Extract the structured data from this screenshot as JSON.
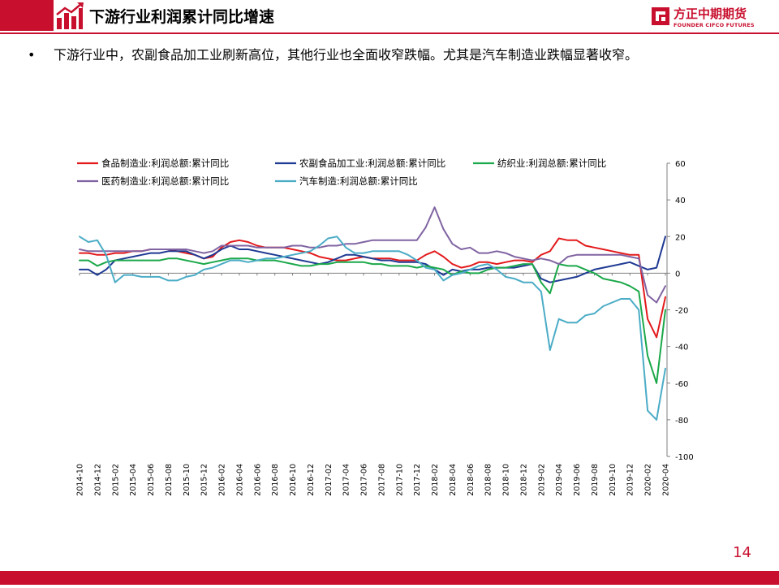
{
  "header": {
    "title": "下游行业利润累计同比增速",
    "brand_name": "方正中期期货",
    "brand_sub": "FOUNDER CIFCO FUTURES"
  },
  "bullet": {
    "text": "下游行业中，农副食品加工业刷新高位，其他行业也全面收窄跌幅。尤其是汽车制造业跌幅显著收窄。"
  },
  "page_number": "14",
  "colors": {
    "brand_red": "#c8102e",
    "axis": "#7f7f7f"
  },
  "icons": {
    "title_icon": "bar-chart-growth-icon",
    "brand_icon": "founder-logo-icon"
  },
  "chart_data": {
    "type": "line",
    "title": "",
    "xlabel": "",
    "ylabel": "",
    "ylim": [
      -100,
      60
    ],
    "yticks": [
      60,
      40,
      20,
      0,
      -20,
      -40,
      -60,
      -80,
      -100
    ],
    "y_axis_side": "right",
    "grid": false,
    "legend": "top-left, 3 columns",
    "x": [
      "2014-10",
      "2014-11",
      "2014-12",
      "2015-01",
      "2015-02",
      "2015-03",
      "2015-04",
      "2015-05",
      "2015-06",
      "2015-07",
      "2015-08",
      "2015-09",
      "2015-10",
      "2015-11",
      "2015-12",
      "2016-01",
      "2016-02",
      "2016-03",
      "2016-04",
      "2016-05",
      "2016-06",
      "2016-07",
      "2016-08",
      "2016-09",
      "2016-10",
      "2016-11",
      "2016-12",
      "2017-01",
      "2017-02",
      "2017-03",
      "2017-04",
      "2017-05",
      "2017-06",
      "2017-07",
      "2017-08",
      "2017-09",
      "2017-10",
      "2017-11",
      "2017-12",
      "2018-01",
      "2018-02",
      "2018-03",
      "2018-04",
      "2018-05",
      "2018-06",
      "2018-07",
      "2018-08",
      "2018-09",
      "2018-10",
      "2018-11",
      "2018-12",
      "2019-01",
      "2019-02",
      "2019-03",
      "2019-04",
      "2019-05",
      "2019-06",
      "2019-07",
      "2019-08",
      "2019-09",
      "2019-10",
      "2019-11",
      "2019-12",
      "2020-01",
      "2020-02",
      "2020-03",
      "2020-04"
    ],
    "x_tick_labels": [
      "2014-10",
      "2014-12",
      "2015-02",
      "2015-04",
      "2015-06",
      "2015-08",
      "2015-10",
      "2015-12",
      "2016-02",
      "2016-04",
      "2016-06",
      "2016-08",
      "2016-10",
      "2016-12",
      "2017-02",
      "2017-04",
      "2017-06",
      "2017-08",
      "2017-10",
      "2017-12",
      "2018-02",
      "2018-04",
      "2018-06",
      "2018-08",
      "2018-10",
      "2018-12",
      "2019-02",
      "2019-04",
      "2019-06",
      "2019-08",
      "2019-10",
      "2019-12",
      "2020-02",
      "2020-04"
    ],
    "series": [
      {
        "name": "食品制造业:利润总额:累计同比",
        "color": "#e31a1c",
        "values": [
          11,
          11,
          10,
          10,
          11,
          11,
          12,
          12,
          13,
          13,
          13,
          12,
          11,
          10,
          8,
          9,
          14,
          17,
          18,
          17,
          15,
          14,
          14,
          14,
          13,
          12,
          11,
          9,
          8,
          7,
          7,
          8,
          9,
          8,
          8,
          8,
          7,
          7,
          7,
          10,
          12,
          9,
          5,
          3,
          4,
          6,
          6,
          5,
          6,
          7,
          7,
          6,
          10,
          12,
          19,
          18,
          18,
          15,
          14,
          13,
          12,
          11,
          10,
          10,
          -25,
          -35,
          -13
        ]
      },
      {
        "name": "农副食品加工业:利润总额:累计同比",
        "color": "#1f3a93",
        "values": [
          2,
          2,
          -1,
          2,
          7,
          8,
          9,
          10,
          11,
          11,
          12,
          12,
          12,
          10,
          8,
          10,
          13,
          15,
          13,
          13,
          12,
          11,
          10,
          9,
          8,
          7,
          6,
          5,
          6,
          8,
          10,
          10,
          9,
          8,
          7,
          7,
          6,
          6,
          6,
          5,
          2,
          -1,
          2,
          1,
          2,
          2,
          3,
          3,
          3,
          3,
          4,
          5,
          -3,
          -5,
          -4,
          -3,
          -2,
          0,
          2,
          3,
          4,
          5,
          6,
          4,
          2,
          3,
          20
        ]
      },
      {
        "name": "纺织业:利润总额:累计同比",
        "color": "#1ba84a",
        "values": [
          7,
          7,
          4,
          6,
          7,
          7,
          7,
          7,
          7,
          7,
          8,
          8,
          7,
          6,
          5,
          6,
          7,
          8,
          8,
          8,
          7,
          7,
          7,
          6,
          5,
          4,
          4,
          5,
          5,
          6,
          6,
          6,
          6,
          5,
          5,
          4,
          4,
          4,
          3,
          4,
          3,
          2,
          -1,
          1,
          0,
          0,
          2,
          3,
          3,
          4,
          5,
          5,
          -5,
          -11,
          5,
          4,
          4,
          2,
          0,
          -3,
          -4,
          -5,
          -7,
          -10,
          -45,
          -60,
          -20
        ]
      },
      {
        "name": "医药制造业:利润总额:累计同比",
        "color": "#8064a2",
        "values": [
          13,
          12,
          12,
          12,
          12,
          12,
          12,
          12,
          13,
          13,
          13,
          13,
          13,
          12,
          11,
          12,
          15,
          15,
          15,
          15,
          14,
          14,
          14,
          14,
          15,
          15,
          14,
          14,
          15,
          15,
          16,
          16,
          17,
          18,
          18,
          18,
          18,
          18,
          18,
          25,
          36,
          24,
          16,
          13,
          14,
          11,
          11,
          12,
          11,
          9,
          8,
          7,
          8,
          7,
          5,
          9,
          10,
          10,
          10,
          10,
          10,
          10,
          9,
          8,
          -12,
          -16,
          -7
        ]
      },
      {
        "name": "汽车制造:利润总额:累计同比",
        "color": "#4bacc6",
        "values": [
          20,
          17,
          18,
          10,
          -5,
          -1,
          -1,
          -2,
          -2,
          -2,
          -4,
          -4,
          -2,
          -1,
          2,
          3,
          5,
          7,
          7,
          6,
          7,
          8,
          8,
          9,
          10,
          11,
          12,
          15,
          19,
          20,
          14,
          11,
          11,
          12,
          12,
          12,
          12,
          10,
          7,
          3,
          2,
          -4,
          -1,
          0,
          2,
          4,
          5,
          2,
          -2,
          -3,
          -5,
          -5,
          -10,
          -42,
          -25,
          -27,
          -27,
          -23,
          -22,
          -18,
          -16,
          -14,
          -14,
          -20,
          -75,
          -80,
          -52
        ]
      }
    ]
  }
}
